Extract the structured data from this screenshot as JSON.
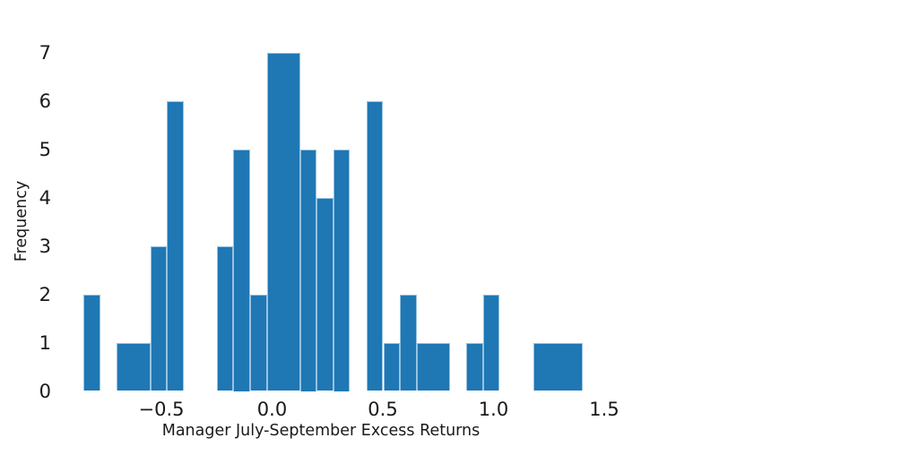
{
  "figure": {
    "background": "#ffffff"
  },
  "chart_data": {
    "type": "bar",
    "subtype": "histogram",
    "xlabel": "Manager July-September Excess Returns",
    "ylabel": "Frequency",
    "bar_color": "#1f77b4",
    "bin_edges": [
      -0.851,
      -0.776,
      -0.701,
      -0.626,
      -0.55,
      -0.475,
      -0.4,
      -0.325,
      -0.25,
      -0.175,
      -0.1,
      -0.024,
      0.051,
      0.126,
      0.201,
      0.276,
      0.351,
      0.426,
      0.502,
      0.577,
      0.652,
      0.727,
      0.802,
      0.877,
      0.952,
      1.028,
      1.103,
      1.178,
      1.253,
      1.328,
      1.403
    ],
    "counts": [
      2,
      0,
      1,
      1,
      3,
      6,
      0,
      0,
      3,
      5,
      2,
      7,
      7,
      5,
      4,
      5,
      0,
      6,
      1,
      2,
      1,
      1,
      0,
      1,
      2,
      0,
      0,
      1,
      1,
      1
    ],
    "xticks": [
      -0.5,
      0.0,
      0.5,
      1.0,
      1.5
    ],
    "xtick_labels": [
      "−0.5",
      "0.0",
      "0.5",
      "1.0",
      "1.5"
    ],
    "yticks": [
      0,
      1,
      2,
      3,
      4,
      5,
      6,
      7
    ],
    "ytick_labels": [
      "0",
      "1",
      "2",
      "3",
      "4",
      "5",
      "6",
      "7"
    ],
    "xlim": [
      -0.96,
      1.52
    ],
    "ylim": [
      0,
      7.36
    ],
    "grid": false,
    "legend": null
  }
}
